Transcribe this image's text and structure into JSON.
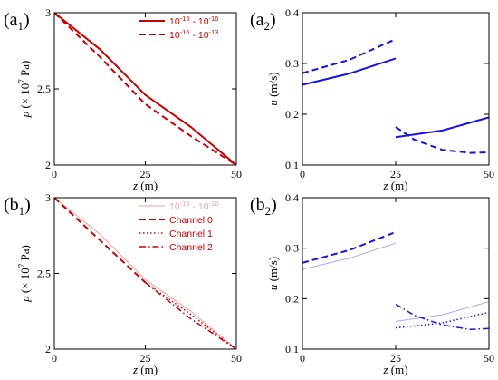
{
  "chart_data": [
    {
      "type": "line",
      "panel_label": {
        "main": "(a",
        "sub": "1",
        "close": ")"
      },
      "xlabel": "z (m)",
      "ylabel": "p (× 10^7 Pa)",
      "xlim": [
        0,
        50
      ],
      "ylim": [
        2,
        3
      ],
      "xticks": [
        0,
        25,
        50
      ],
      "yticks": [
        2,
        2.5,
        3
      ],
      "grid": false,
      "legend_position": "top-right",
      "series": [
        {
          "name": "10^-16 - 10^-16",
          "legend_base": "10",
          "legend_exp1": "-16",
          "legend_mid": " - 10",
          "legend_exp2": "-16",
          "color": "#cc0000",
          "style": "solid",
          "width": 2,
          "x": [
            0,
            12.5,
            25,
            37.5,
            50
          ],
          "y": [
            3.0,
            2.76,
            2.46,
            2.25,
            2.0
          ]
        },
        {
          "name": "10^-16 - 10^-13",
          "legend_base": "10",
          "legend_exp1": "-16",
          "legend_mid": " - 10",
          "legend_exp2": "-13",
          "color": "#cc0000",
          "style": "dashed",
          "width": 2,
          "x": [
            0,
            12.5,
            25,
            37.5,
            50
          ],
          "y": [
            3.0,
            2.71,
            2.4,
            2.19,
            2.0
          ]
        }
      ]
    },
    {
      "type": "line",
      "panel_label": {
        "main": "(a",
        "sub": "2",
        "close": ")"
      },
      "xlabel": "z (m)",
      "ylabel": "u (m/s)",
      "xlim": [
        0,
        50
      ],
      "ylim": [
        0.1,
        0.4
      ],
      "xticks": [
        0,
        25,
        50
      ],
      "yticks": [
        0.1,
        0.2,
        0.3,
        0.4
      ],
      "grid": false,
      "series": [
        {
          "color": "#1515e0",
          "style": "solid",
          "width": 2,
          "x": [
            0,
            12.5,
            25
          ],
          "y": [
            0.258,
            0.28,
            0.31
          ]
        },
        {
          "color": "#1515e0",
          "style": "dashed",
          "width": 2,
          "x": [
            0,
            12.5,
            25
          ],
          "y": [
            0.281,
            0.307,
            0.348
          ]
        },
        {
          "color": "#1515e0",
          "style": "solid",
          "width": 2,
          "x": [
            25,
            37.5,
            50
          ],
          "y": [
            0.155,
            0.168,
            0.194
          ]
        },
        {
          "color": "#1515e0",
          "style": "dashed",
          "width": 2,
          "x": [
            25,
            30,
            37.5,
            45,
            50
          ],
          "y": [
            0.175,
            0.15,
            0.13,
            0.124,
            0.125
          ]
        }
      ]
    },
    {
      "type": "line",
      "panel_label": {
        "main": "(b",
        "sub": "1",
        "close": ")"
      },
      "xlabel": "z (m)",
      "ylabel": "p (× 10^7 Pa)",
      "xlim": [
        0,
        50
      ],
      "ylim": [
        2,
        3
      ],
      "xticks": [
        0,
        25,
        50
      ],
      "yticks": [
        2,
        2.5,
        3
      ],
      "grid": false,
      "legend_position": "top-right",
      "series": [
        {
          "name": "10^-16 - 10^-16",
          "legend_base": "10",
          "legend_exp1": "-16",
          "legend_mid": " - 10",
          "legend_exp2": "-16",
          "color": "#f0a0a0",
          "style": "solid",
          "width": 1,
          "x": [
            0,
            12.5,
            25,
            37.5,
            50
          ],
          "y": [
            3.0,
            2.76,
            2.46,
            2.25,
            2.0
          ]
        },
        {
          "name": "Channel 0",
          "color": "#cc0000",
          "style": "dashed",
          "width": 2,
          "x": [
            0,
            12.5,
            25
          ],
          "y": [
            3.0,
            2.72,
            2.44
          ]
        },
        {
          "name": "Channel 1",
          "color": "#cc0000",
          "style": "dotted",
          "width": 1.5,
          "x": [
            25,
            37.5,
            50
          ],
          "y": [
            2.44,
            2.23,
            2.0
          ]
        },
        {
          "name": "Channel 2",
          "color": "#cc0000",
          "style": "dashdot",
          "width": 1.5,
          "x": [
            25,
            37.5,
            50
          ],
          "y": [
            2.44,
            2.2,
            2.0
          ]
        }
      ]
    },
    {
      "type": "line",
      "panel_label": {
        "main": "(b",
        "sub": "2",
        "close": ")"
      },
      "xlabel": "z (m)",
      "ylabel": "u (m/s)",
      "xlim": [
        0,
        50
      ],
      "ylim": [
        0.1,
        0.4
      ],
      "xticks": [
        0,
        25,
        50
      ],
      "yticks": [
        0.1,
        0.2,
        0.3,
        0.4
      ],
      "grid": false,
      "series": [
        {
          "color": "#a8a8f0",
          "style": "solid",
          "width": 1,
          "x": [
            0,
            12.5,
            25
          ],
          "y": [
            0.258,
            0.28,
            0.31
          ]
        },
        {
          "color": "#1515e0",
          "style": "dashed",
          "width": 2,
          "x": [
            0,
            12.5,
            25
          ],
          "y": [
            0.271,
            0.296,
            0.332
          ]
        },
        {
          "color": "#a8a8f0",
          "style": "solid",
          "width": 1,
          "x": [
            25,
            37.5,
            50
          ],
          "y": [
            0.155,
            0.168,
            0.194
          ]
        },
        {
          "color": "#1515e0",
          "style": "dotted",
          "width": 1.5,
          "x": [
            25,
            37.5,
            50
          ],
          "y": [
            0.142,
            0.152,
            0.173
          ]
        },
        {
          "color": "#1515e0",
          "style": "dashdot",
          "width": 1.5,
          "x": [
            25,
            30,
            37.5,
            45,
            50
          ],
          "y": [
            0.189,
            0.167,
            0.148,
            0.139,
            0.141
          ]
        }
      ]
    }
  ]
}
